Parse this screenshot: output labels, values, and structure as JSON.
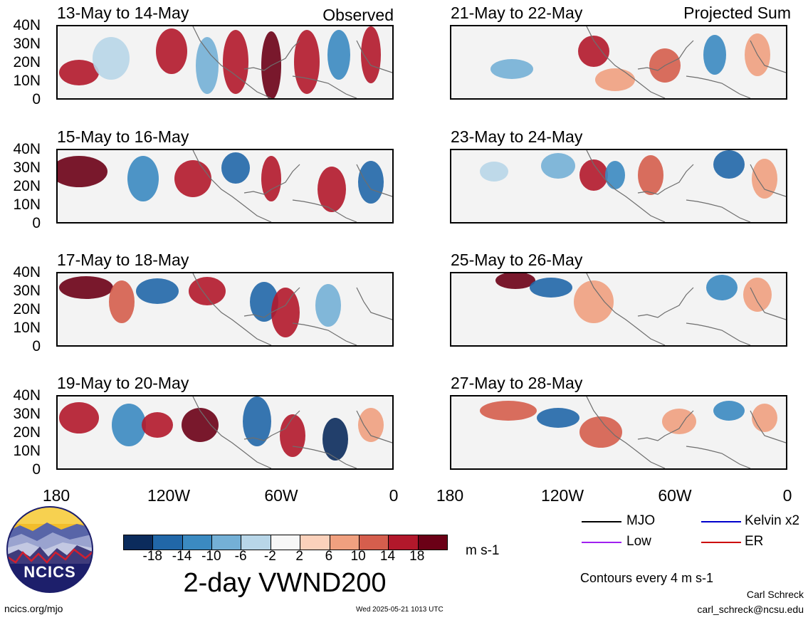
{
  "panels": [
    {
      "title": "13-May to 14-May",
      "corner": "Observed"
    },
    {
      "title": "21-May to 22-May",
      "corner": "Projected Sum"
    },
    {
      "title": "15-May to 16-May",
      "corner": ""
    },
    {
      "title": "23-May to 24-May",
      "corner": ""
    },
    {
      "title": "17-May to 18-May",
      "corner": ""
    },
    {
      "title": "25-May to 26-May",
      "corner": ""
    },
    {
      "title": "19-May to 20-May",
      "corner": ""
    },
    {
      "title": "27-May to 28-May",
      "corner": ""
    }
  ],
  "y_axis_labels": [
    "40N",
    "30N",
    "20N",
    "10N",
    "0"
  ],
  "x_axis_labels": [
    "180",
    "120W",
    "60W",
    "0"
  ],
  "colorbar": {
    "labels": [
      "-18",
      "-14",
      "-10",
      "-6",
      "-2",
      "2",
      "6",
      "10",
      "14",
      "18"
    ],
    "colors": [
      "#0b2b5c",
      "#2167a8",
      "#3b8ac1",
      "#74b0d6",
      "#b8d6e8",
      "#f7f7f7",
      "#fbd1bb",
      "#f0a07f",
      "#d55e4d",
      "#b2182b",
      "#6b0016"
    ],
    "unit": "m s-1"
  },
  "main_title": "2-day VWND200",
  "legend": {
    "items": [
      {
        "label": "MJO",
        "color": "#000000"
      },
      {
        "label": "Kelvin x2",
        "color": "#0000cc"
      },
      {
        "label": "Low",
        "color": "#a020f0"
      },
      {
        "label": "ER",
        "color": "#cc0000"
      }
    ],
    "contour_note": "Contours every 4 m s-1"
  },
  "logo": {
    "text": "NCICS"
  },
  "footer": {
    "left": "ncics.org/mjo",
    "center": "Wed 2025-05-21 1013 UTC",
    "author": "Carl Schreck",
    "email": "carl_schreck@ncsu.edu"
  }
}
